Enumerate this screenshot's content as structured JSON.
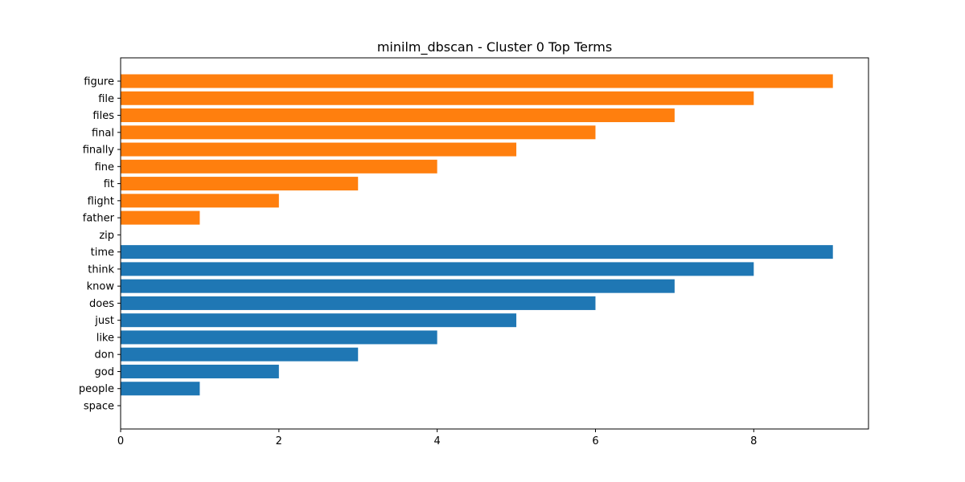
{
  "chart_data": {
    "type": "bar",
    "orientation": "horizontal",
    "title": "minilm_dbscan - Cluster 0 Top Terms",
    "xlabel": "",
    "ylabel": "",
    "xlim": [
      0,
      9.45
    ],
    "xticks": [
      0,
      2,
      4,
      6,
      8
    ],
    "grid": false,
    "series": [
      {
        "color": "#ff7f0e",
        "categories": [
          "figure",
          "file",
          "files",
          "final",
          "finally",
          "fine",
          "fit",
          "flight",
          "father",
          "zip"
        ],
        "values": [
          9,
          8,
          7,
          6,
          5,
          4,
          3,
          2,
          1,
          0
        ]
      },
      {
        "color": "#1f77b4",
        "categories": [
          "time",
          "think",
          "know",
          "does",
          "just",
          "like",
          "don",
          "god",
          "people",
          "space"
        ],
        "values": [
          9,
          8,
          7,
          6,
          5,
          4,
          3,
          2,
          1,
          0
        ]
      }
    ]
  }
}
